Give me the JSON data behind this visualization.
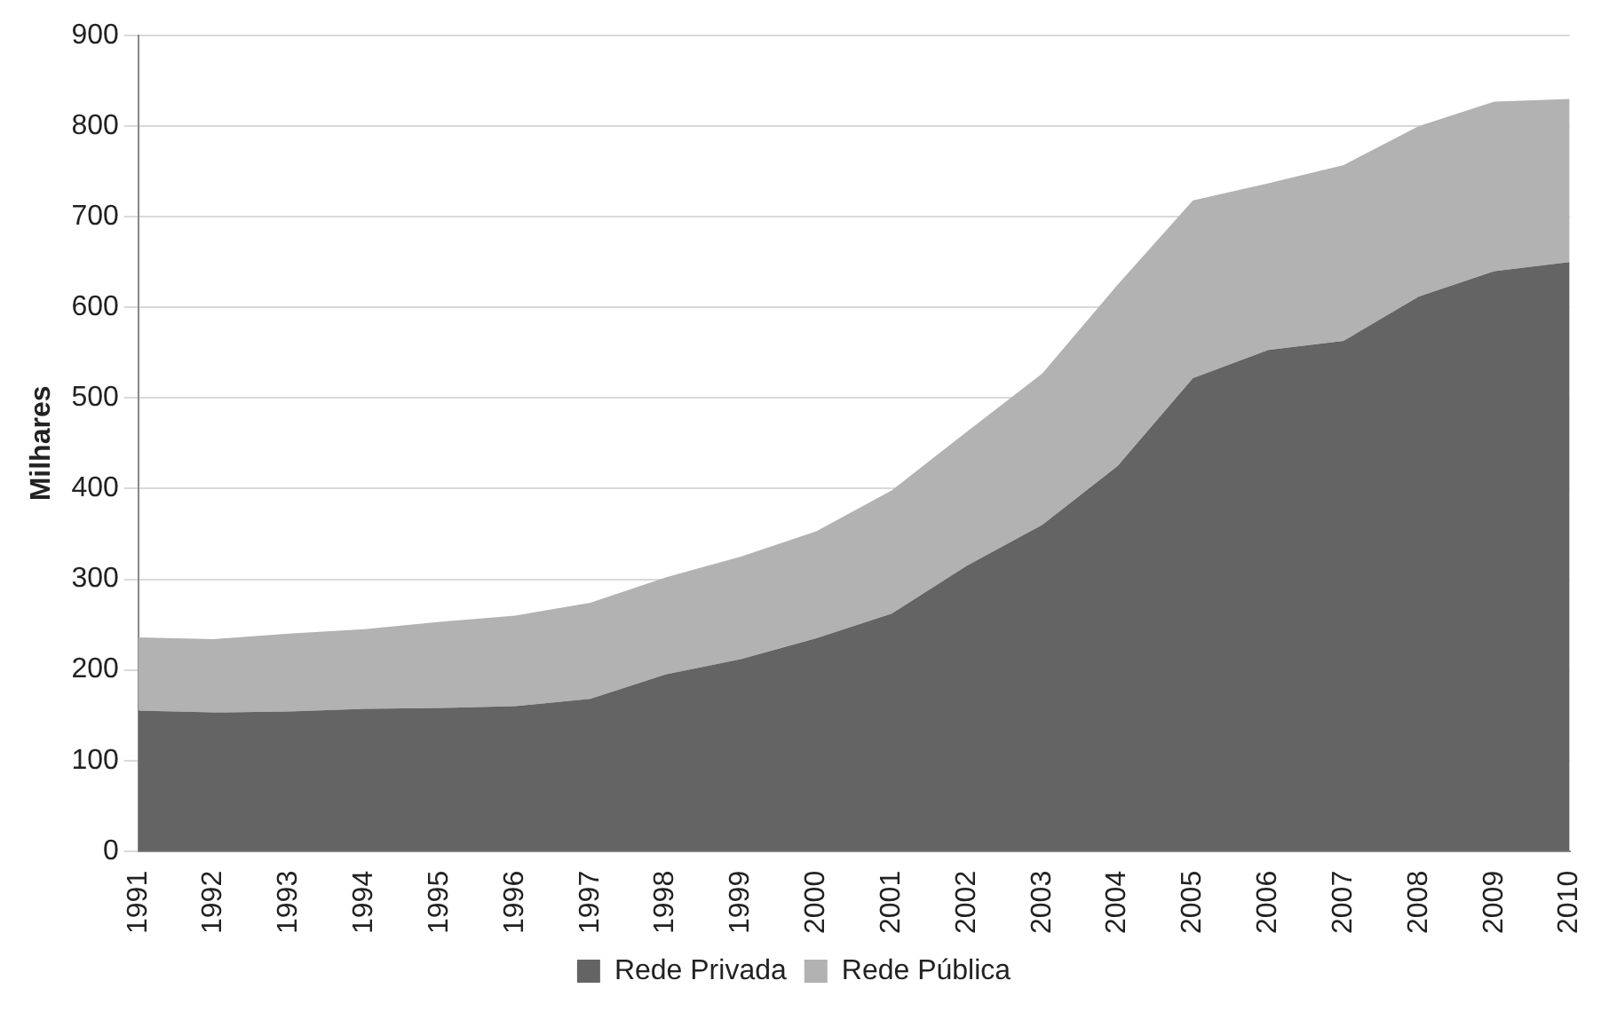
{
  "chart_data": {
    "type": "area",
    "stacked": true,
    "ylabel": "Milhares",
    "categories": [
      "1991",
      "1992",
      "1993",
      "1994",
      "1995",
      "1996",
      "1997",
      "1998",
      "1999",
      "2000",
      "2001",
      "2002",
      "2003",
      "2004",
      "2005",
      "2006",
      "2007",
      "2008",
      "2009",
      "2010"
    ],
    "series": [
      {
        "name": "Rede Privada",
        "color": "#646464",
        "values": [
          155,
          153,
          154,
          157,
          158,
          160,
          168,
          195,
          212,
          235,
          262,
          315,
          360,
          425,
          522,
          553,
          563,
          612,
          640,
          650
        ]
      },
      {
        "name": "Rede Pública",
        "color": "#b2b2b2",
        "values": [
          81,
          81,
          86,
          88,
          95,
          100,
          106,
          107,
          113,
          118,
          136,
          148,
          167,
          200,
          196,
          184,
          194,
          188,
          187,
          180
        ]
      }
    ],
    "ylim": [
      0,
      900
    ],
    "yticks": [
      0,
      100,
      200,
      300,
      400,
      500,
      600,
      700,
      800,
      900
    ],
    "grid": "y",
    "legend": "bottom"
  }
}
